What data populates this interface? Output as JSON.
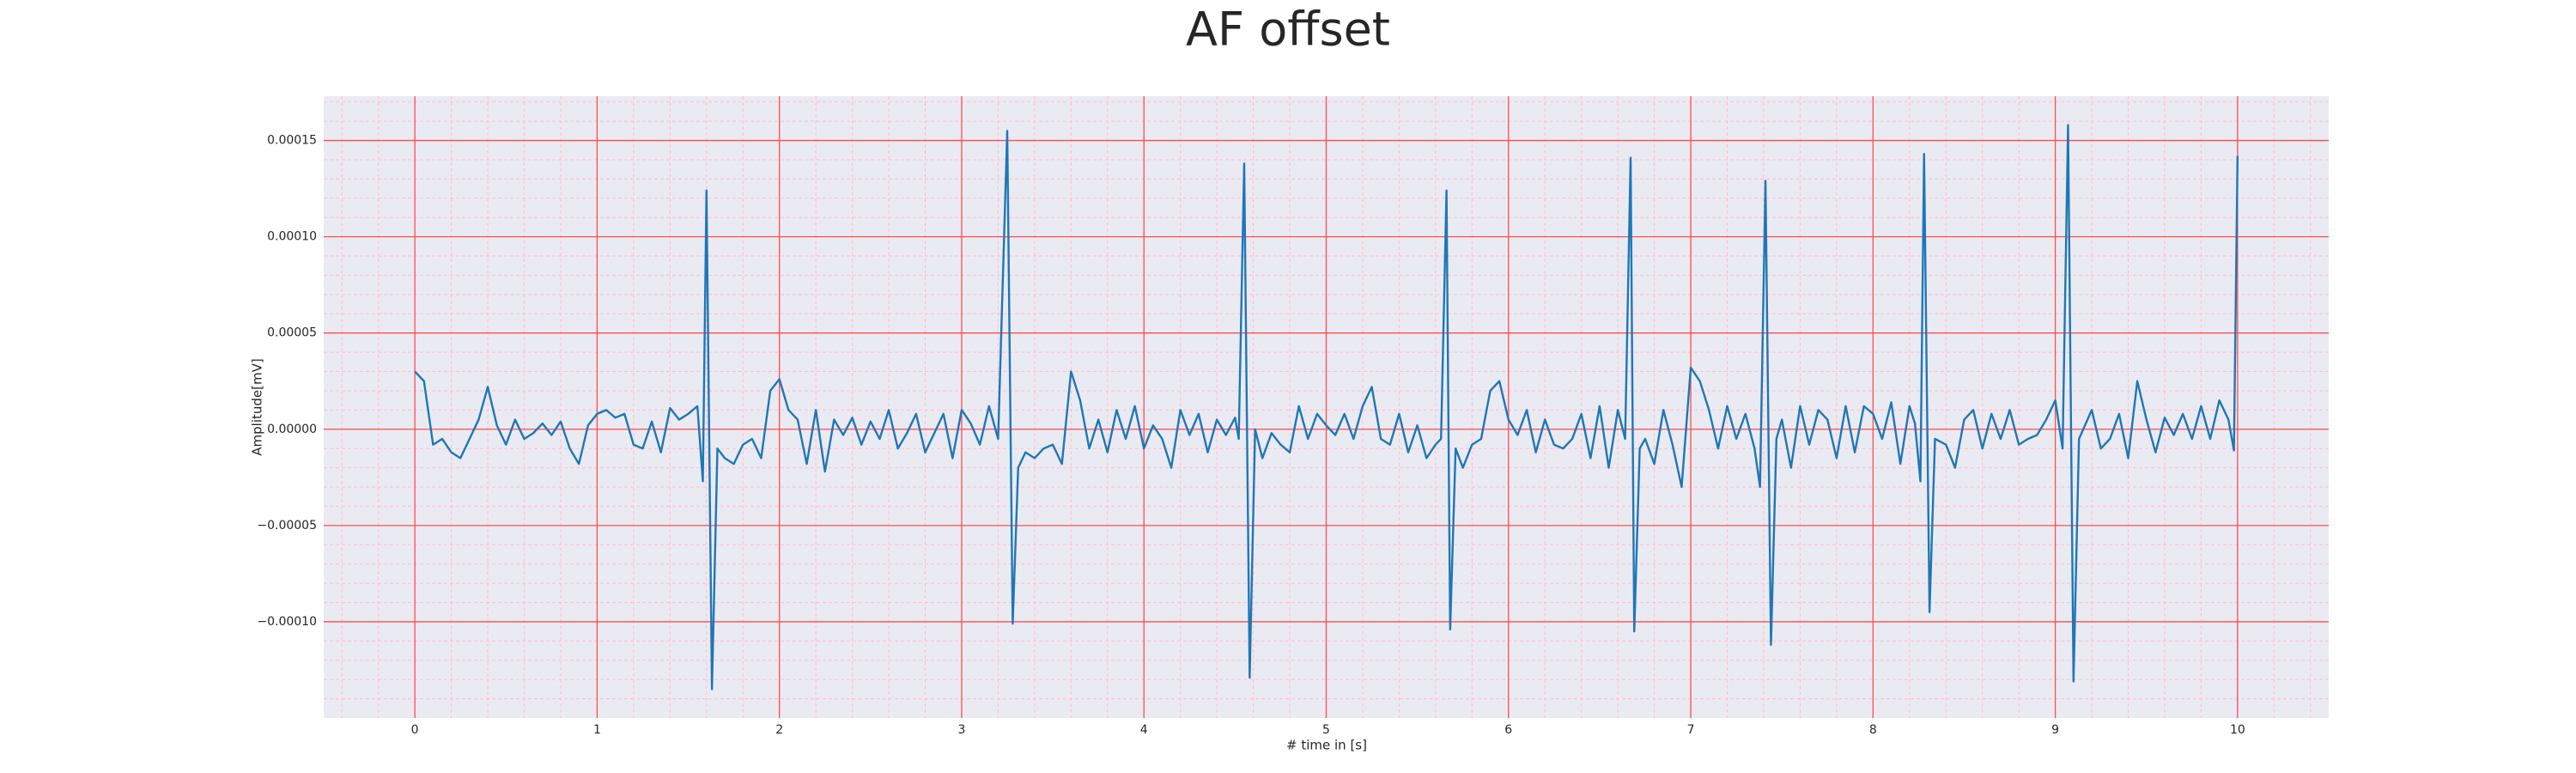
{
  "chart_data": {
    "type": "line",
    "title": "AF offset",
    "xlabel": "# time in [s]",
    "ylabel": "Amplitude[mV]",
    "color": "#1f77b4",
    "grid": true,
    "minor_grid": true,
    "xlim": [
      -0.5,
      10.5
    ],
    "ylim": [
      -0.00015,
      0.000173
    ],
    "xticks": [
      0,
      1,
      2,
      3,
      4,
      5,
      6,
      7,
      8,
      9,
      10
    ],
    "yticks": [
      {
        "value": -0.0001,
        "label": "−0.00010"
      },
      {
        "value": -5e-05,
        "label": "−0.00005"
      },
      {
        "value": 0,
        "label": "0.00000"
      },
      {
        "value": 5e-05,
        "label": "0.00005"
      },
      {
        "value": 0.0001,
        "label": "0.00010"
      },
      {
        "value": 0.00015,
        "label": "0.00015"
      }
    ],
    "xticks_minor": [
      -0.4,
      -0.2,
      0.2,
      0.4,
      0.6,
      0.8,
      1.2,
      1.4,
      1.6,
      1.8,
      2.2,
      2.4,
      2.6,
      2.8,
      3.2,
      3.4,
      3.6,
      3.8,
      4.2,
      4.4,
      4.6,
      4.8,
      5.2,
      5.4,
      5.6,
      5.8,
      6.2,
      6.4,
      6.6,
      6.8,
      7.2,
      7.4,
      7.6,
      7.8,
      8.2,
      8.4,
      8.6,
      8.8,
      9.2,
      9.4,
      9.6,
      9.8,
      10.2,
      10.4
    ],
    "yticks_minor": [
      -0.00014,
      -0.00013,
      -0.00012,
      -0.00011,
      -9e-05,
      -8e-05,
      -7e-05,
      -6e-05,
      -4e-05,
      -3e-05,
      -2e-05,
      -1e-05,
      1e-05,
      2e-05,
      3e-05,
      4e-05,
      6e-05,
      7e-05,
      8e-05,
      9e-05,
      0.00011,
      0.00012,
      0.00013,
      0.00014,
      0.00016,
      0.00017
    ],
    "x": [
      0,
      0.05,
      0.1,
      0.15,
      0.2,
      0.25,
      0.3,
      0.35,
      0.4,
      0.45,
      0.5,
      0.55,
      0.6,
      0.65,
      0.7,
      0.75,
      0.8,
      0.85,
      0.9,
      0.95,
      1.0,
      1.05,
      1.1,
      1.15,
      1.2,
      1.25,
      1.3,
      1.35,
      1.4,
      1.45,
      1.5,
      1.55,
      1.58,
      1.6,
      1.63,
      1.66,
      1.7,
      1.75,
      1.8,
      1.85,
      1.9,
      1.95,
      2.0,
      2.05,
      2.1,
      2.15,
      2.2,
      2.25,
      2.3,
      2.35,
      2.4,
      2.45,
      2.5,
      2.55,
      2.6,
      2.65,
      2.7,
      2.75,
      2.8,
      2.85,
      2.9,
      2.95,
      3.0,
      3.05,
      3.1,
      3.15,
      3.2,
      3.25,
      3.28,
      3.31,
      3.35,
      3.4,
      3.45,
      3.5,
      3.55,
      3.6,
      3.65,
      3.7,
      3.75,
      3.8,
      3.85,
      3.9,
      3.95,
      4.0,
      4.05,
      4.1,
      4.15,
      4.2,
      4.25,
      4.3,
      4.35,
      4.4,
      4.45,
      4.5,
      4.52,
      4.55,
      4.58,
      4.61,
      4.65,
      4.7,
      4.75,
      4.8,
      4.85,
      4.9,
      4.95,
      5.0,
      5.05,
      5.1,
      5.15,
      5.2,
      5.25,
      5.3,
      5.35,
      5.4,
      5.45,
      5.5,
      5.55,
      5.6,
      5.63,
      5.66,
      5.68,
      5.71,
      5.75,
      5.8,
      5.85,
      5.9,
      5.95,
      6.0,
      6.05,
      6.1,
      6.15,
      6.2,
      6.25,
      6.3,
      6.35,
      6.4,
      6.45,
      6.5,
      6.55,
      6.6,
      6.64,
      6.67,
      6.69,
      6.72,
      6.75,
      6.8,
      6.85,
      6.9,
      6.95,
      7.0,
      7.05,
      7.1,
      7.15,
      7.2,
      7.25,
      7.3,
      7.35,
      7.38,
      7.41,
      7.44,
      7.47,
      7.5,
      7.55,
      7.6,
      7.65,
      7.7,
      7.75,
      7.8,
      7.85,
      7.9,
      7.95,
      8.0,
      8.05,
      8.1,
      8.15,
      8.2,
      8.23,
      8.26,
      8.28,
      8.31,
      8.34,
      8.4,
      8.45,
      8.5,
      8.55,
      8.6,
      8.65,
      8.7,
      8.75,
      8.8,
      8.85,
      8.9,
      8.95,
      9.0,
      9.04,
      9.07,
      9.1,
      9.13,
      9.2,
      9.25,
      9.3,
      9.35,
      9.4,
      9.45,
      9.5,
      9.55,
      9.6,
      9.65,
      9.7,
      9.75,
      9.8,
      9.85,
      9.9,
      9.95,
      9.98,
      10.0
    ],
    "values": [
      3e-05,
      2.5e-05,
      -8e-06,
      -5e-06,
      -1.2e-05,
      -1.5e-05,
      -5e-06,
      5e-06,
      2.2e-05,
      2e-06,
      -8e-06,
      5e-06,
      -5e-06,
      -2e-06,
      3e-06,
      -3e-06,
      4e-06,
      -1e-05,
      -1.8e-05,
      2e-06,
      8e-06,
      1e-05,
      6e-06,
      8e-06,
      -8e-06,
      -1e-05,
      4e-06,
      -1.2e-05,
      1.1e-05,
      5e-06,
      8e-06,
      1.2e-05,
      -2.7e-05,
      0.000124,
      -0.000135,
      -1e-05,
      -1.5e-05,
      -1.8e-05,
      -8e-06,
      -5e-06,
      -1.5e-05,
      2e-05,
      2.6e-05,
      1e-05,
      5e-06,
      -1.8e-05,
      1e-05,
      -2.2e-05,
      5e-06,
      -3e-06,
      6e-06,
      -8e-06,
      4e-06,
      -5e-06,
      1e-05,
      -1e-05,
      -2e-06,
      8e-06,
      -1.2e-05,
      -2e-06,
      8e-06,
      -1.5e-05,
      1e-05,
      3e-06,
      -8e-06,
      1.2e-05,
      -5e-06,
      0.000155,
      -0.000101,
      -2e-05,
      -1.2e-05,
      -1.5e-05,
      -1e-05,
      -8e-06,
      -1.8e-05,
      3e-05,
      1.5e-05,
      -1e-05,
      5e-06,
      -1.2e-05,
      1e-05,
      -5e-06,
      1.2e-05,
      -1e-05,
      2e-06,
      -5e-06,
      -2e-05,
      1e-05,
      -3e-06,
      8e-06,
      -1.2e-05,
      5e-06,
      -3e-06,
      6e-06,
      -5e-06,
      0.000138,
      -0.000129,
      0,
      -1.5e-05,
      -2e-06,
      -8e-06,
      -1.2e-05,
      1.2e-05,
      -5e-06,
      8e-06,
      2e-06,
      -3e-06,
      8e-06,
      -5e-06,
      1.2e-05,
      2.2e-05,
      -5e-06,
      -8e-06,
      8e-06,
      -1.2e-05,
      2e-06,
      -1.5e-05,
      -8e-06,
      -5e-06,
      0.000124,
      -0.000104,
      -1e-05,
      -2e-05,
      -8e-06,
      -5e-06,
      2e-05,
      2.5e-05,
      5e-06,
      -3e-06,
      1e-05,
      -1.2e-05,
      5e-06,
      -8e-06,
      -1e-05,
      -5e-06,
      8e-06,
      -1.5e-05,
      1.2e-05,
      -2e-05,
      1e-05,
      -5e-06,
      0.000141,
      -0.000105,
      -1e-05,
      -5e-06,
      -1.8e-05,
      1e-05,
      -8e-06,
      -3e-05,
      3.2e-05,
      2.5e-05,
      1e-05,
      -1e-05,
      1.2e-05,
      -5e-06,
      8e-06,
      -1e-05,
      -3e-05,
      0.000129,
      -0.000112,
      -5e-06,
      5e-06,
      -2e-05,
      1.2e-05,
      -8e-06,
      1e-05,
      5e-06,
      -1.5e-05,
      1.2e-05,
      -1.2e-05,
      1.2e-05,
      8e-06,
      -5e-06,
      1.4e-05,
      -1.8e-05,
      1.2e-05,
      3e-06,
      -2.7e-05,
      0.000143,
      -9.5e-05,
      -5e-06,
      -8e-06,
      -2e-05,
      5e-06,
      1e-05,
      -1e-05,
      8e-06,
      -5e-06,
      1e-05,
      -8e-06,
      -5e-06,
      -3e-06,
      5e-06,
      1.5e-05,
      -1e-05,
      0.000158,
      -0.000131,
      -5e-06,
      1e-05,
      -1e-05,
      -5e-06,
      8e-06,
      -1.5e-05,
      2.5e-05,
      5e-06,
      -1.2e-05,
      6e-06,
      -3e-06,
      8e-06,
      -5e-06,
      1.2e-05,
      -5e-06,
      1.5e-05,
      5e-06,
      -1.1e-05,
      0.000142
    ]
  }
}
